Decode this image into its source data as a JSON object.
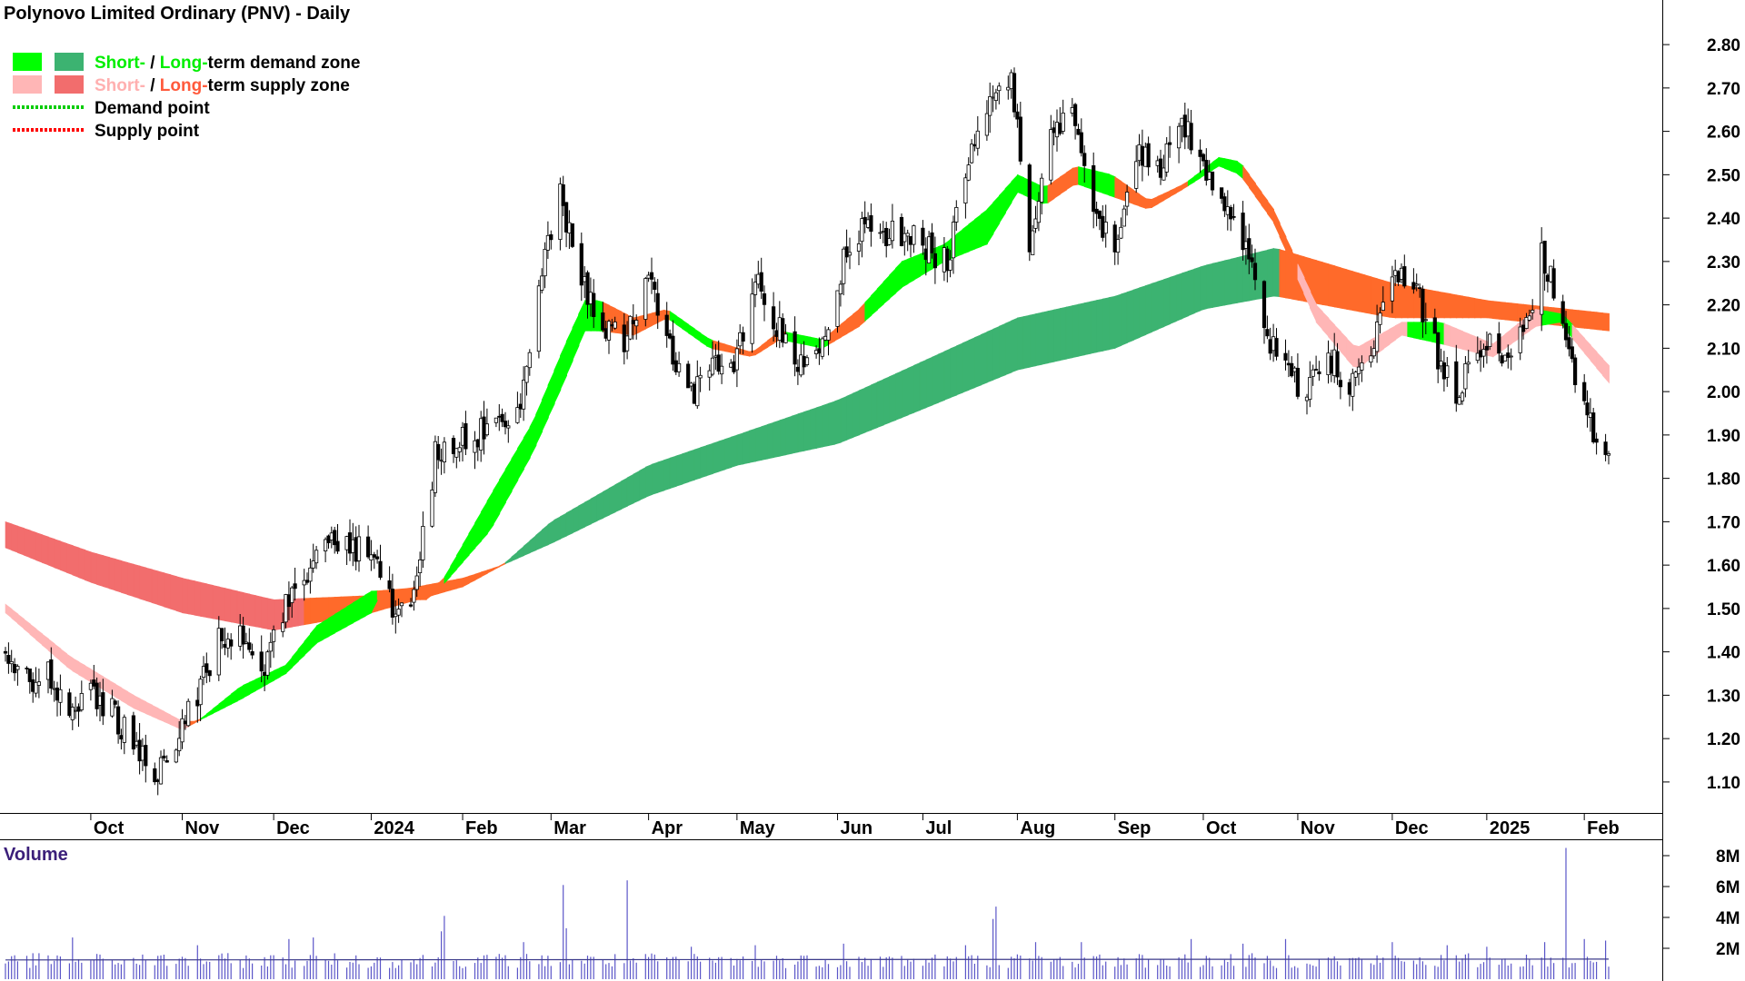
{
  "chart_data": {
    "type": "candlestick",
    "title": "Polynovo Limited Ordinary (PNV) - Daily",
    "legend": {
      "placement": "top-left",
      "entries": [
        {
          "parts": [
            {
              "text": "Short-",
              "color": "#00ee00"
            },
            {
              "text": " / ",
              "color": "#000000"
            },
            {
              "text": "Long-",
              "color": "#00ee00"
            },
            {
              "text": "term demand zone",
              "color": "#000000"
            }
          ],
          "swatches": [
            "#00ff00",
            "#3cb371"
          ]
        },
        {
          "parts": [
            {
              "text": "Short-",
              "color": "#ffb0b0"
            },
            {
              "text": " / ",
              "color": "#000000"
            },
            {
              "text": "Long-",
              "color": "#ff5a3c"
            },
            {
              "text": "term supply zone",
              "color": "#000000"
            }
          ],
          "swatches": [
            "#ffb6b6",
            "#f26d6d"
          ]
        },
        {
          "parts": [
            {
              "text": "Demand point",
              "color": "#000000"
            }
          ],
          "line": "#00cc00"
        },
        {
          "parts": [
            {
              "text": "Supply point",
              "color": "#000000"
            }
          ],
          "line": "#ff0000"
        }
      ]
    },
    "y_axis": {
      "ylim": [
        1.06,
        2.84
      ],
      "ticks": [
        "1.10",
        "1.20",
        "1.30",
        "1.40",
        "1.50",
        "1.60",
        "1.70",
        "1.80",
        "1.90",
        "2.00",
        "2.10",
        "2.20",
        "2.30",
        "2.40",
        "2.50",
        "2.60",
        "2.70",
        "2.80"
      ],
      "position": "right"
    },
    "x_axis": {
      "start": "2023-09-04",
      "end": "2025-02-11",
      "labels": [
        {
          "text": "Oct",
          "date": "2023-10-02"
        },
        {
          "text": "Nov",
          "date": "2023-11-01"
        },
        {
          "text": "Dec",
          "date": "2023-12-01"
        },
        {
          "text": "2024",
          "date": "2024-01-02"
        },
        {
          "text": "Feb",
          "date": "2024-02-01"
        },
        {
          "text": "Mar",
          "date": "2024-03-01"
        },
        {
          "text": "Apr",
          "date": "2024-04-02"
        },
        {
          "text": "May",
          "date": "2024-05-01"
        },
        {
          "text": "Jun",
          "date": "2024-06-03"
        },
        {
          "text": "Jul",
          "date": "2024-07-01"
        },
        {
          "text": "Aug",
          "date": "2024-08-01"
        },
        {
          "text": "Sep",
          "date": "2024-09-02"
        },
        {
          "text": "Oct",
          "date": "2024-10-01"
        },
        {
          "text": "Nov",
          "date": "2024-11-01"
        },
        {
          "text": "Dec",
          "date": "2024-12-02"
        },
        {
          "text": "2025",
          "date": "2025-01-02"
        },
        {
          "text": "Feb",
          "date": "2025-02-03"
        }
      ]
    },
    "price_path": [
      [
        "2023-09-04",
        1.4
      ],
      [
        "2023-09-11",
        1.33
      ],
      [
        "2023-09-18",
        1.35
      ],
      [
        "2023-09-25",
        1.24
      ],
      [
        "2023-10-02",
        1.31
      ],
      [
        "2023-10-09",
        1.26
      ],
      [
        "2023-10-16",
        1.18
      ],
      [
        "2023-10-23",
        1.12
      ],
      [
        "2023-10-30",
        1.2
      ],
      [
        "2023-11-06",
        1.3
      ],
      [
        "2023-11-13",
        1.42
      ],
      [
        "2023-11-20",
        1.44
      ],
      [
        "2023-11-27",
        1.35
      ],
      [
        "2023-12-04",
        1.5
      ],
      [
        "2023-12-11",
        1.58
      ],
      [
        "2023-12-18",
        1.66
      ],
      [
        "2024-01-02",
        1.62
      ],
      [
        "2024-01-09",
        1.5
      ],
      [
        "2024-01-16",
        1.52
      ],
      [
        "2024-01-23",
        1.85
      ],
      [
        "2024-01-30",
        1.88
      ],
      [
        "2024-02-06",
        1.9
      ],
      [
        "2024-02-13",
        1.95
      ],
      [
        "2024-02-20",
        1.96
      ],
      [
        "2024-02-27",
        2.3
      ],
      [
        "2024-03-04",
        2.45
      ],
      [
        "2024-03-11",
        2.25
      ],
      [
        "2024-03-18",
        2.15
      ],
      [
        "2024-03-25",
        2.12
      ],
      [
        "2024-04-02",
        2.25
      ],
      [
        "2024-04-09",
        2.1
      ],
      [
        "2024-04-16",
        2.0
      ],
      [
        "2024-04-23",
        2.05
      ],
      [
        "2024-04-30",
        2.05
      ],
      [
        "2024-05-07",
        2.25
      ],
      [
        "2024-05-14",
        2.15
      ],
      [
        "2024-05-21",
        2.05
      ],
      [
        "2024-05-28",
        2.1
      ],
      [
        "2024-06-04",
        2.28
      ],
      [
        "2024-06-11",
        2.38
      ],
      [
        "2024-06-18",
        2.35
      ],
      [
        "2024-06-25",
        2.37
      ],
      [
        "2024-07-02",
        2.33
      ],
      [
        "2024-07-09",
        2.3
      ],
      [
        "2024-07-16",
        2.55
      ],
      [
        "2024-07-23",
        2.68
      ],
      [
        "2024-07-30",
        2.72
      ],
      [
        "2024-08-05",
        2.35
      ],
      [
        "2024-08-12",
        2.6
      ],
      [
        "2024-08-19",
        2.62
      ],
      [
        "2024-08-26",
        2.45
      ],
      [
        "2024-09-02",
        2.3
      ],
      [
        "2024-09-09",
        2.55
      ],
      [
        "2024-09-16",
        2.5
      ],
      [
        "2024-09-23",
        2.62
      ],
      [
        "2024-09-30",
        2.55
      ],
      [
        "2024-10-07",
        2.42
      ],
      [
        "2024-10-14",
        2.36
      ],
      [
        "2024-10-21",
        2.15
      ],
      [
        "2024-10-28",
        2.05
      ],
      [
        "2024-11-04",
        2.0
      ],
      [
        "2024-11-11",
        2.08
      ],
      [
        "2024-11-18",
        2.02
      ],
      [
        "2024-11-25",
        2.08
      ],
      [
        "2024-12-02",
        2.25
      ],
      [
        "2024-12-09",
        2.26
      ],
      [
        "2024-12-16",
        2.1
      ],
      [
        "2024-12-23",
        2.0
      ],
      [
        "2025-01-02",
        2.12
      ],
      [
        "2025-01-09",
        2.05
      ],
      [
        "2025-01-16",
        2.18
      ],
      [
        "2025-01-20",
        2.32
      ],
      [
        "2025-01-27",
        2.18
      ],
      [
        "2025-02-03",
        1.95
      ],
      [
        "2025-02-11",
        1.85
      ]
    ],
    "short_term_zone": [
      [
        "2023-09-04",
        1.51,
        1.49,
        "supply"
      ],
      [
        "2023-09-25",
        1.39,
        1.36,
        "supply"
      ],
      [
        "2023-10-16",
        1.3,
        1.27,
        "supply"
      ],
      [
        "2023-11-01",
        1.24,
        1.22,
        "supply"
      ],
      [
        "2023-11-06",
        1.24,
        1.24,
        "demand"
      ],
      [
        "2023-11-20",
        1.32,
        1.29,
        "demand"
      ],
      [
        "2023-12-05",
        1.37,
        1.35,
        "demand"
      ],
      [
        "2023-12-15",
        1.46,
        1.42,
        "demand"
      ],
      [
        "2024-01-02",
        1.54,
        1.49,
        "demand"
      ],
      [
        "2024-01-03",
        1.54,
        1.52,
        "supply"
      ],
      [
        "2024-01-20",
        1.55,
        1.52,
        "supply"
      ],
      [
        "2024-01-25",
        1.56,
        1.55,
        "demand"
      ],
      [
        "2024-02-10",
        1.76,
        1.68,
        "demand"
      ],
      [
        "2024-02-24",
        1.93,
        1.86,
        "demand"
      ],
      [
        "2024-03-05",
        2.1,
        2.02,
        "demand"
      ],
      [
        "2024-03-12",
        2.21,
        2.14,
        "demand"
      ],
      [
        "2024-03-17",
        2.21,
        2.14,
        "supply"
      ],
      [
        "2024-03-28",
        2.17,
        2.13,
        "supply"
      ],
      [
        "2024-04-08",
        2.19,
        2.17,
        "demand"
      ],
      [
        "2024-04-22",
        2.12,
        2.1,
        "supply"
      ],
      [
        "2024-05-06",
        2.09,
        2.08,
        "supply"
      ],
      [
        "2024-05-15",
        2.14,
        2.12,
        "demand"
      ],
      [
        "2024-05-29",
        2.12,
        2.1,
        "supply"
      ],
      [
        "2024-06-10",
        2.19,
        2.15,
        "demand"
      ],
      [
        "2024-06-24",
        2.3,
        2.24,
        "demand"
      ],
      [
        "2024-07-08",
        2.34,
        2.3,
        "demand"
      ],
      [
        "2024-07-22",
        2.42,
        2.34,
        "demand"
      ],
      [
        "2024-08-01",
        2.5,
        2.46,
        "demand"
      ],
      [
        "2024-08-10",
        2.47,
        2.43,
        "supply"
      ],
      [
        "2024-08-20",
        2.52,
        2.48,
        "demand"
      ],
      [
        "2024-09-01",
        2.5,
        2.45,
        "supply"
      ],
      [
        "2024-09-13",
        2.44,
        2.42,
        "supply"
      ],
      [
        "2024-09-25",
        2.48,
        2.47,
        "demand"
      ],
      [
        "2024-10-06",
        2.54,
        2.52,
        "demand"
      ],
      [
        "2024-10-13",
        2.53,
        2.5,
        "supply"
      ],
      [
        "2024-10-24",
        2.42,
        2.39,
        "supply"
      ],
      [
        "2024-11-07",
        2.2,
        2.16,
        "supply"
      ],
      [
        "2024-11-20",
        2.1,
        2.05,
        "supply"
      ],
      [
        "2024-12-05",
        2.16,
        2.13,
        "demand"
      ],
      [
        "2024-12-18",
        2.16,
        2.11,
        "supply"
      ],
      [
        "2025-01-04",
        2.11,
        2.08,
        "supply"
      ],
      [
        "2025-01-18",
        2.19,
        2.15,
        "demand"
      ],
      [
        "2025-01-26",
        2.18,
        2.16,
        "demand"
      ],
      [
        "2025-01-28",
        2.17,
        2.14,
        "supply"
      ],
      [
        "2025-02-11",
        2.06,
        2.02,
        "supply"
      ]
    ],
    "long_term_zone": [
      [
        "2023-09-04",
        1.7,
        1.64,
        "supply"
      ],
      [
        "2023-10-02",
        1.63,
        1.56,
        "supply"
      ],
      [
        "2023-11-01",
        1.57,
        1.49,
        "supply"
      ],
      [
        "2023-12-01",
        1.52,
        1.45,
        "supply"
      ],
      [
        "2024-01-02",
        1.53,
        1.49,
        "supply"
      ],
      [
        "2024-02-01",
        1.57,
        1.55,
        "supply"
      ],
      [
        "2024-02-14",
        1.6,
        1.6,
        "demand"
      ],
      [
        "2024-03-01",
        1.7,
        1.65,
        "demand"
      ],
      [
        "2024-04-02",
        1.83,
        1.76,
        "demand"
      ],
      [
        "2024-05-01",
        1.9,
        1.83,
        "demand"
      ],
      [
        "2024-06-03",
        1.98,
        1.88,
        "demand"
      ],
      [
        "2024-07-01",
        2.07,
        1.96,
        "demand"
      ],
      [
        "2024-08-01",
        2.17,
        2.05,
        "demand"
      ],
      [
        "2024-09-02",
        2.22,
        2.1,
        "demand"
      ],
      [
        "2024-10-01",
        2.29,
        2.19,
        "demand"
      ],
      [
        "2024-10-24",
        2.33,
        2.22,
        "demand"
      ],
      [
        "2024-10-25",
        2.33,
        2.22,
        "supply"
      ],
      [
        "2024-12-02",
        2.25,
        2.17,
        "supply"
      ],
      [
        "2025-01-02",
        2.21,
        2.17,
        "supply"
      ],
      [
        "2025-02-11",
        2.18,
        2.14,
        "supply"
      ]
    ],
    "volume": {
      "title": "Volume",
      "ticks": [
        "2M",
        "4M",
        "6M",
        "8M"
      ],
      "ylim": [
        0,
        9
      ],
      "baseline_millions": 1.3,
      "spikes": [
        [
          "2023-09-26",
          2.7
        ],
        [
          "2023-11-06",
          2.2
        ],
        [
          "2023-12-06",
          2.6
        ],
        [
          "2023-12-14",
          2.7
        ],
        [
          "2024-01-25",
          3.1
        ],
        [
          "2024-01-26",
          4.1
        ],
        [
          "2024-02-21",
          2.4
        ],
        [
          "2024-03-05",
          6.1
        ],
        [
          "2024-03-06",
          3.3
        ],
        [
          "2024-03-26",
          6.4
        ],
        [
          "2024-04-16",
          2.1
        ],
        [
          "2024-05-07",
          2.2
        ],
        [
          "2024-06-05",
          2.3
        ],
        [
          "2024-07-15",
          2.2
        ],
        [
          "2024-07-24",
          3.9
        ],
        [
          "2024-07-25",
          4.7
        ],
        [
          "2024-08-07",
          2.4
        ],
        [
          "2024-08-22",
          2.4
        ],
        [
          "2024-09-27",
          2.6
        ],
        [
          "2024-10-14",
          2.3
        ],
        [
          "2024-10-28",
          2.6
        ],
        [
          "2024-12-02",
          2.4
        ],
        [
          "2024-12-20",
          2.2
        ],
        [
          "2025-01-02",
          2.1
        ],
        [
          "2025-01-21",
          2.4
        ],
        [
          "2025-01-28",
          8.5
        ],
        [
          "2025-02-03",
          2.6
        ],
        [
          "2025-02-10",
          2.5
        ]
      ]
    }
  }
}
